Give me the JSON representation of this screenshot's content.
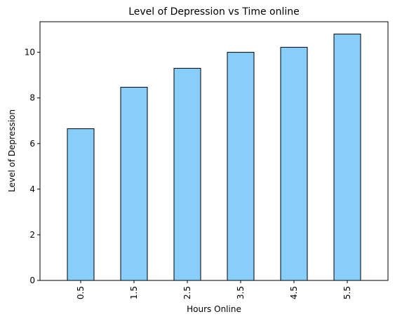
{
  "chart_data": {
    "type": "bar",
    "title": "Level of Depression vs Time online",
    "xlabel": "Hours Online",
    "ylabel": "Level of Depression",
    "categories": [
      "0.5",
      "1.5",
      "2.5",
      "3.5",
      "4.5",
      "5.5"
    ],
    "values": [
      6.65,
      8.47,
      9.3,
      10.0,
      10.22,
      10.8
    ],
    "ylim": [
      0,
      11.34
    ],
    "yticks": [
      "0",
      "2",
      "4",
      "6",
      "8",
      "10"
    ],
    "grid": false,
    "legend": "none",
    "colors": {
      "bar_fill": "#87CEFA",
      "bar_edge": "#000000"
    }
  }
}
